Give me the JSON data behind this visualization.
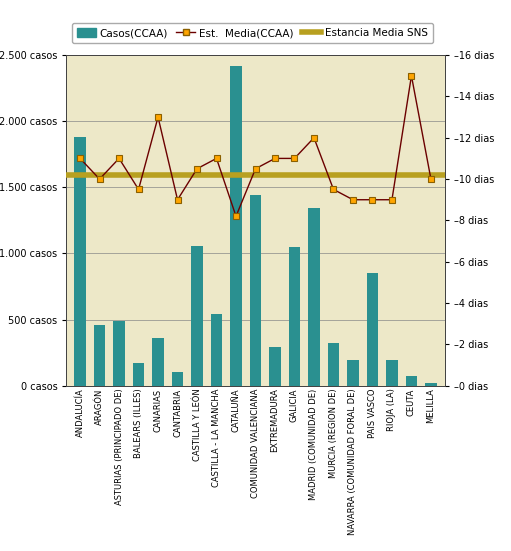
{
  "categories": [
    "ANDALUCÍA",
    "ARAGÓN",
    "ASTURIAS (PRINCIPADO DE)",
    "BALEARS (ILLES)",
    "CANARIAS",
    "CANTABRIA",
    "CASTILLA Y LEÓN",
    "CASTILLA - LA MANCHA",
    "CATALUÑA",
    "COMUNIDAD VALENCIANA",
    "EXTREMADURA",
    "GALICIA",
    "MADRID (COMUNIDAD DE)",
    "MURCIA (REGION DE)",
    "NAVARRA (COMUNIDAD FORAL DE)",
    "PAIS VASCO",
    "RIOJA (LA)",
    "CEUTA",
    "MELILLA"
  ],
  "casos": [
    1880,
    460,
    490,
    175,
    360,
    100,
    1060,
    540,
    2420,
    1440,
    290,
    1050,
    1340,
    320,
    195,
    850,
    195,
    75,
    20
  ],
  "estancia_media": [
    11.0,
    10.0,
    11.0,
    9.5,
    13.0,
    9.0,
    10.5,
    11.0,
    8.2,
    10.5,
    11.0,
    11.0,
    12.0,
    9.5,
    9.0,
    9.0,
    9.0,
    15.0,
    10.0
  ],
  "estancia_sns": 10.2,
  "bar_color": "#2a9090",
  "line_color": "#6b0000",
  "line_marker_facecolor": "#ffa500",
  "line_marker_edgecolor": "#8b6000",
  "sns_line_color": "#b8a020",
  "background_color": "#ede8c8",
  "ylim_left": [
    0,
    2500
  ],
  "ylim_right": [
    0,
    16
  ],
  "yticks_left": [
    0,
    500,
    1000,
    1500,
    2000,
    2500
  ],
  "ytick_labels_left": [
    "0 casos",
    "500 casos",
    "1.000 casos",
    "1.500 casos",
    "2.000 casos",
    "2.500 casos"
  ],
  "yticks_right": [
    0,
    2,
    4,
    6,
    8,
    10,
    12,
    14,
    16
  ],
  "ytick_labels_right": [
    "0 dias",
    "2 dias",
    "4 dias",
    "6 dias",
    "8 dias",
    "10 dias",
    "12 dias",
    "14 dias",
    "16 dias"
  ],
  "legend_labels": [
    "Casos(CCAA)",
    "Est.  Media(CCAA)",
    "Estancia Media SNS"
  ]
}
